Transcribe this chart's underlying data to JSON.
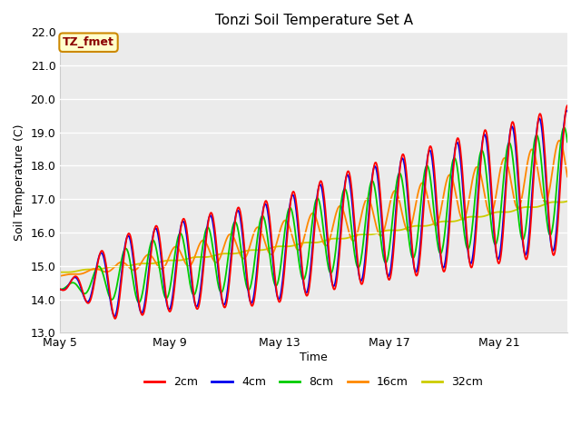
{
  "title": "Tonzi Soil Temperature Set A",
  "xlabel": "Time",
  "ylabel": "Soil Temperature (C)",
  "ylim": [
    13.0,
    22.0
  ],
  "yticks": [
    13.0,
    14.0,
    15.0,
    16.0,
    17.0,
    18.0,
    19.0,
    20.0,
    21.0,
    22.0
  ],
  "xtick_labels": [
    "May 5",
    "May 9",
    "May 13",
    "May 17",
    "May 21"
  ],
  "xtick_positions": [
    0,
    4,
    8,
    12,
    16
  ],
  "legend_labels": [
    "2cm",
    "4cm",
    "8cm",
    "16cm",
    "32cm"
  ],
  "legend_colors": [
    "#ff0000",
    "#0000ee",
    "#00cc00",
    "#ff8800",
    "#cccc00"
  ],
  "annotation_text": "TZ_fmet",
  "annotation_bg": "#ffffcc",
  "annotation_border": "#cc8800",
  "line_width": 1.3,
  "n_days": 18.5,
  "points_per_day": 48
}
